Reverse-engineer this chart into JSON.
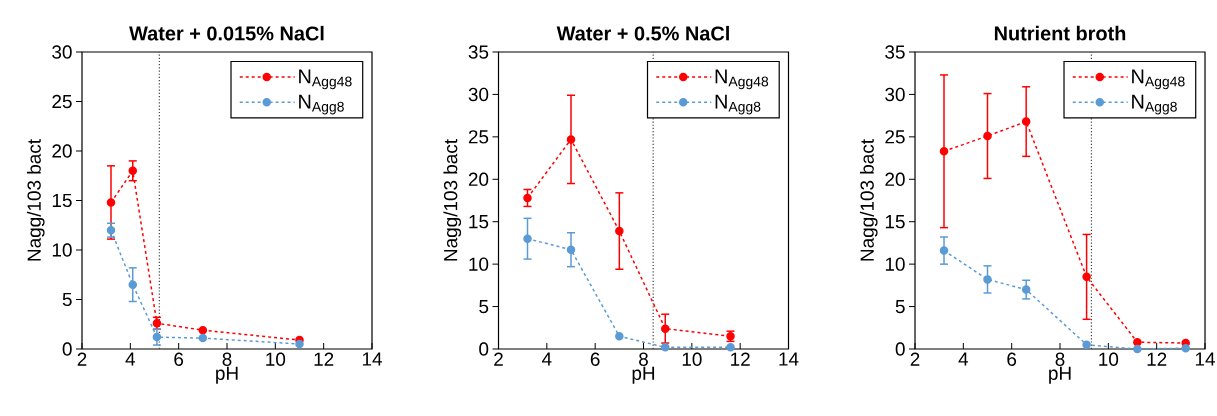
{
  "chart_data": [
    {
      "type": "line",
      "title": "Water + 0.015% NaCl",
      "xlabel": "pH",
      "ylabel": "Nagg/103 bact",
      "xlim": [
        2,
        14
      ],
      "xticks": [
        2,
        4,
        6,
        8,
        10,
        12,
        14
      ],
      "ylim": [
        0,
        30
      ],
      "yticks": [
        0,
        5,
        10,
        15,
        20,
        25,
        30
      ],
      "legend": "top right",
      "marker": "circle",
      "line_style": "dashed",
      "grid": false,
      "ref_lines": [
        {
          "axis": "x",
          "value": 5.2,
          "color": "#404040",
          "line_style": "dotted"
        }
      ],
      "series": [
        {
          "name": "N$_{Agg48}$",
          "color": "#ff0000",
          "x": [
            3.2,
            4.1,
            5.1,
            7.0,
            11.0
          ],
          "values": [
            14.8,
            18.0,
            2.6,
            1.9,
            0.9
          ],
          "errors": [
            3.7,
            1.0,
            0.6,
            null,
            null
          ]
        },
        {
          "name": "N$_{Agg8}$",
          "color": "#5b9bd5",
          "x": [
            3.2,
            4.1,
            5.1,
            7.0,
            11.0
          ],
          "values": [
            12.0,
            6.5,
            1.2,
            1.1,
            0.5
          ],
          "errors": [
            0.7,
            1.7,
            0.8,
            null,
            null
          ]
        }
      ]
    },
    {
      "type": "line",
      "title": "Water + 0.5% NaCl",
      "xlabel": "pH",
      "ylabel": "Nagg/103 bact",
      "xlim": [
        2,
        14
      ],
      "xticks": [
        2,
        4,
        6,
        8,
        10,
        12,
        14
      ],
      "ylim": [
        0,
        35
      ],
      "yticks": [
        0,
        5,
        10,
        15,
        20,
        25,
        30,
        35
      ],
      "legend": "top right",
      "marker": "circle",
      "line_style": "dashed",
      "grid": false,
      "ref_lines": [
        {
          "axis": "x",
          "value": 8.4,
          "color": "#404040",
          "line_style": "dotted"
        }
      ],
      "series": [
        {
          "name": "N$_{Agg48}$",
          "color": "#ff0000",
          "x": [
            3.2,
            5.0,
            7.0,
            8.9,
            11.6
          ],
          "values": [
            17.8,
            24.7,
            13.9,
            2.4,
            1.5
          ],
          "errors": [
            1.0,
            5.2,
            4.5,
            1.7,
            0.6
          ]
        },
        {
          "name": "N$_{Agg8}$",
          "color": "#5b9bd5",
          "x": [
            3.2,
            5.0,
            7.0,
            8.9,
            11.6
          ],
          "values": [
            13.0,
            11.7,
            1.5,
            0.2,
            0.2
          ],
          "errors": [
            2.4,
            2.0,
            null,
            null,
            null
          ]
        }
      ]
    },
    {
      "type": "line",
      "title": "Nutrient broth",
      "xlabel": "pH",
      "ylabel": "Nagg/103 bact",
      "xlim": [
        2,
        14
      ],
      "xticks": [
        2,
        4,
        6,
        8,
        10,
        12,
        14
      ],
      "ylim": [
        0,
        35
      ],
      "yticks": [
        0,
        5,
        10,
        15,
        20,
        25,
        30,
        35
      ],
      "legend": "top right",
      "marker": "circle",
      "line_style": "dashed",
      "grid": false,
      "ref_lines": [
        {
          "axis": "x",
          "value": 9.3,
          "color": "#404040",
          "line_style": "dotted"
        }
      ],
      "series": [
        {
          "name": "N$_{Agg48}$",
          "color": "#ff0000",
          "x": [
            3.2,
            5.0,
            6.6,
            9.1,
            11.2,
            13.2
          ],
          "values": [
            23.3,
            25.1,
            26.8,
            8.5,
            0.8,
            0.7
          ],
          "errors": [
            9.0,
            5.0,
            4.1,
            5.0,
            null,
            null
          ]
        },
        {
          "name": "N$_{Agg8}$",
          "color": "#5b9bd5",
          "x": [
            3.2,
            5.0,
            6.6,
            9.1,
            11.2,
            13.2
          ],
          "values": [
            11.6,
            8.2,
            7.0,
            0.5,
            0.0,
            0.1
          ],
          "errors": [
            1.6,
            1.6,
            1.1,
            null,
            null,
            null
          ]
        }
      ]
    }
  ]
}
